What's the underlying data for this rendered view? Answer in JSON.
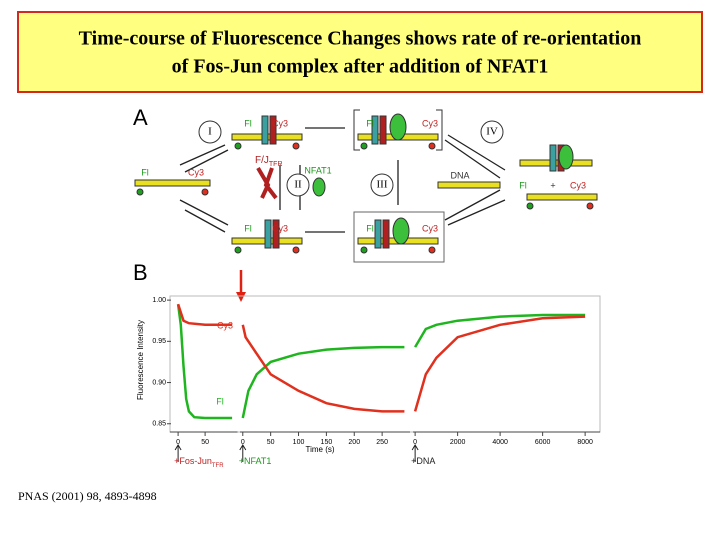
{
  "header": {
    "title_lines": [
      "Time-course of Fluorescence Changes shows rate of re-orientation",
      "of Fos-Jun complex after addition of NFAT1"
    ]
  },
  "panel_a": {
    "letter": "A",
    "steps": [
      "I",
      "II",
      "III",
      "IV"
    ],
    "labels": [
      "Fl",
      "Cy3",
      "Fl",
      "Cy3",
      "Fl",
      "Cy3",
      "NFAT1",
      "DNA",
      "Fl",
      "+",
      "Cy3",
      "Fl",
      "Cy3",
      "Fl",
      "Cy3"
    ],
    "complex_label": {
      "text": "F/J",
      "sub": "TFR"
    }
  },
  "panel_b": {
    "letter": "B",
    "type": "line",
    "y_label": "Fluorescence Intensity",
    "x_label": "Time (s)",
    "ylim": [
      0.84,
      1.005
    ],
    "yticks": [
      {
        "value": 1.0,
        "label": "1.00"
      },
      0.95,
      {
        "value": 0.9,
        "label": "0.90"
      },
      0.85
    ],
    "x_segments": [
      {
        "xlim": [
          -15,
          110
        ],
        "xticks": [
          0,
          50
        ]
      },
      {
        "xlim": [
          -5,
          300
        ],
        "xticks": [
          0,
          50,
          100,
          150,
          200,
          250
        ]
      },
      {
        "xlim": [
          -100,
          8700
        ],
        "xticks": [
          0,
          2000,
          4000,
          6000,
          8000
        ]
      }
    ],
    "series": [
      {
        "name": "Fl",
        "color": "#1fb51f",
        "segments": [
          {
            "x": [
              0,
              5,
              10,
              15,
              20,
              30,
              50,
              100
            ],
            "values": [
              0.995,
              0.97,
              0.92,
              0.88,
              0.865,
              0.858,
              0.857,
              0.857
            ]
          },
          {
            "x": [
              0,
              10,
              25,
              50,
              100,
              150,
              200,
              250,
              290
            ],
            "values": [
              0.857,
              0.89,
              0.91,
              0.925,
              0.935,
              0.94,
              0.942,
              0.943,
              0.943
            ]
          },
          {
            "x": [
              0,
              500,
              1000,
              2000,
              4000,
              6000,
              8000
            ],
            "values": [
              0.943,
              0.965,
              0.97,
              0.975,
              0.98,
              0.982,
              0.982
            ]
          }
        ]
      },
      {
        "name": "Cy3",
        "color": "#e0301e",
        "segments": [
          {
            "x": [
              0,
              10,
              20,
              50,
              100
            ],
            "values": [
              0.995,
              0.975,
              0.972,
              0.97,
              0.97
            ]
          },
          {
            "x": [
              0,
              5,
              20,
              50,
              100,
              150,
              200,
              250,
              290
            ],
            "values": [
              0.97,
              0.955,
              0.94,
              0.91,
              0.89,
              0.875,
              0.868,
              0.865,
              0.865
            ]
          },
          {
            "x": [
              0,
              500,
              1000,
              2000,
              4000,
              6000,
              8000
            ],
            "values": [
              0.865,
              0.91,
              0.93,
              0.955,
              0.97,
              0.978,
              0.98
            ]
          }
        ]
      }
    ],
    "additions": [
      {
        "text": "+Fos-Jun",
        "sub": "TFR"
      },
      {
        "text": "+NFAT1"
      },
      {
        "text": "+DNA"
      }
    ]
  },
  "citation": "PNAS (2001) 98, 4893-4898"
}
